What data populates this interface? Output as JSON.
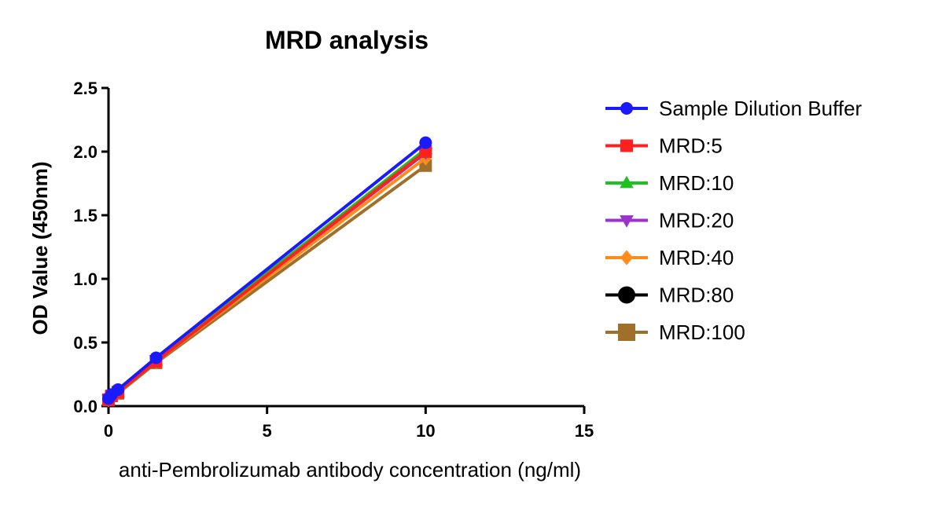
{
  "chart_data": {
    "type": "line",
    "title": "MRD analysis",
    "xlabel": "anti-Pembrolizumab antibody concentration (ng/ml)",
    "ylabel": "OD Value (450nm)",
    "xlim": [
      0,
      15
    ],
    "ylim": [
      0,
      2.5
    ],
    "xticks": [
      0,
      5,
      10,
      15
    ],
    "xtick_labels": [
      "0",
      "5",
      "10",
      "15"
    ],
    "yticks": [
      0.0,
      0.5,
      1.0,
      1.5,
      2.0,
      2.5
    ],
    "ytick_labels": [
      "0.0",
      "0.5",
      "1.0",
      "1.5",
      "2.0",
      "2.5"
    ],
    "grid": false,
    "legend_position": "right",
    "x": [
      0,
      0.094,
      0.3,
      1.5,
      10
    ],
    "series": [
      {
        "name": "Sample Dilution Buffer",
        "color": "#1a1aff",
        "marker": "circle",
        "values": [
          0.06,
          0.09,
          0.13,
          0.38,
          2.07
        ]
      },
      {
        "name": "MRD:5",
        "color": "#ff2020",
        "marker": "square",
        "values": [
          0.05,
          0.08,
          0.11,
          0.35,
          2.0
        ]
      },
      {
        "name": "MRD:10",
        "color": "#20c020",
        "marker": "triangle-up",
        "values": [
          0.05,
          0.08,
          0.11,
          0.36,
          2.02
        ]
      },
      {
        "name": "MRD:20",
        "color": "#9933cc",
        "marker": "triangle-down",
        "values": [
          0.05,
          0.08,
          0.11,
          0.36,
          1.99
        ]
      },
      {
        "name": "MRD:40",
        "color": "#ff8c1a",
        "marker": "diamond",
        "values": [
          0.05,
          0.08,
          0.11,
          0.35,
          1.95
        ]
      },
      {
        "name": "MRD:80",
        "color": "#000000",
        "marker": "circle",
        "values": [
          0.06,
          0.09,
          0.12,
          0.37,
          2.01
        ]
      },
      {
        "name": "MRD:100",
        "color": "#a0702a",
        "marker": "square",
        "values": [
          0.05,
          0.08,
          0.1,
          0.34,
          1.89
        ]
      }
    ]
  }
}
